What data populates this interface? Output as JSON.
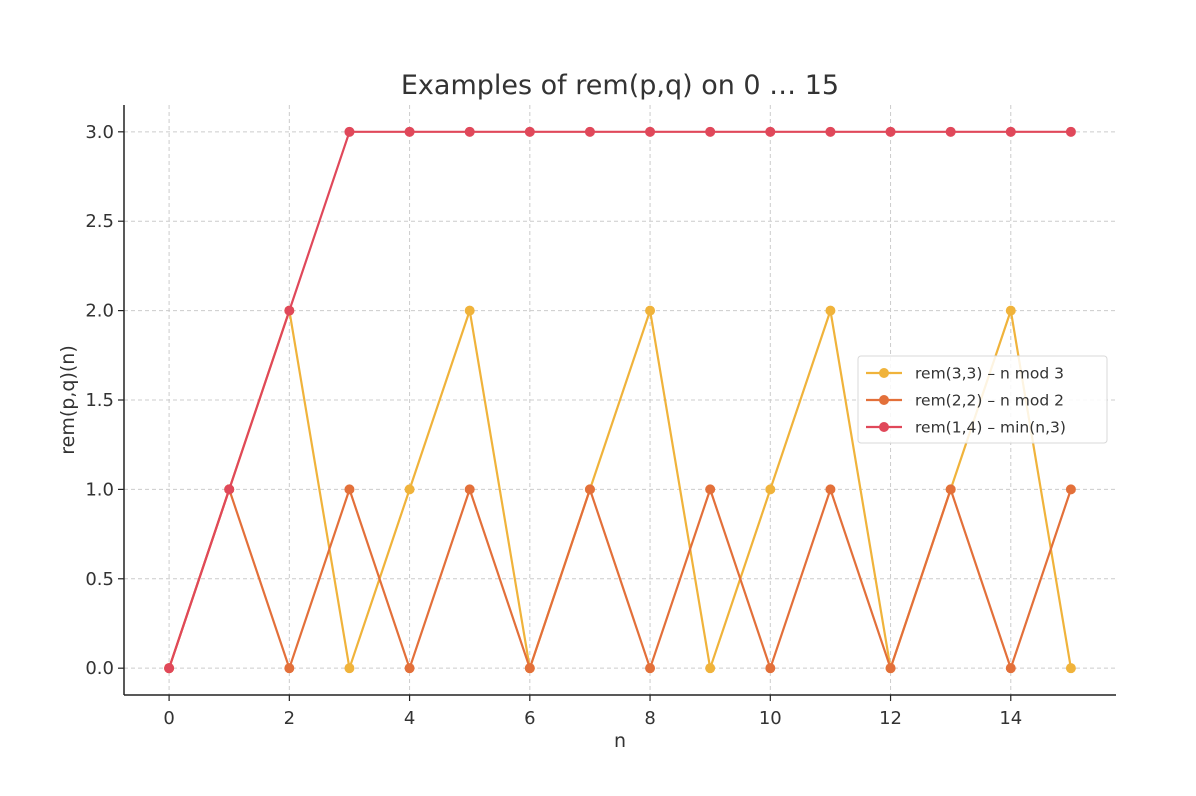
{
  "chart_data": {
    "type": "line",
    "title": "Examples of rem(p,q) on 0 … 15",
    "xlabel": "n",
    "ylabel": "rem(p,q)(n)",
    "xlim": [
      -0.75,
      15.75
    ],
    "ylim": [
      -0.15,
      3.15
    ],
    "xticks": [
      0,
      2,
      4,
      6,
      8,
      10,
      12,
      14
    ],
    "xtick_labels": [
      "0",
      "2",
      "4",
      "6",
      "8",
      "10",
      "12",
      "14"
    ],
    "yticks": [
      0.0,
      0.5,
      1.0,
      1.5,
      2.0,
      2.5,
      3.0
    ],
    "ytick_labels": [
      "0.0",
      "0.5",
      "1.0",
      "1.5",
      "2.0",
      "2.5",
      "3.0"
    ],
    "grid": true,
    "legend_position": "center-right",
    "x": [
      0,
      1,
      2,
      3,
      4,
      5,
      6,
      7,
      8,
      9,
      10,
      11,
      12,
      13,
      14,
      15
    ],
    "series": [
      {
        "name": "rem(3,3)  –  n mod 3",
        "color": "#f0b33b",
        "values": [
          0,
          1,
          2,
          0,
          1,
          2,
          0,
          1,
          2,
          0,
          1,
          2,
          0,
          1,
          2,
          0
        ]
      },
      {
        "name": "rem(2,2)  –  n mod 2",
        "color": "#e3703a",
        "values": [
          0,
          1,
          0,
          1,
          0,
          1,
          0,
          1,
          0,
          1,
          0,
          1,
          0,
          1,
          0,
          1
        ]
      },
      {
        "name": "rem(1,4)  –  min(n,3)",
        "color": "#e0485a",
        "values": [
          0,
          1,
          2,
          3,
          3,
          3,
          3,
          3,
          3,
          3,
          3,
          3,
          3,
          3,
          3,
          3
        ]
      }
    ]
  }
}
